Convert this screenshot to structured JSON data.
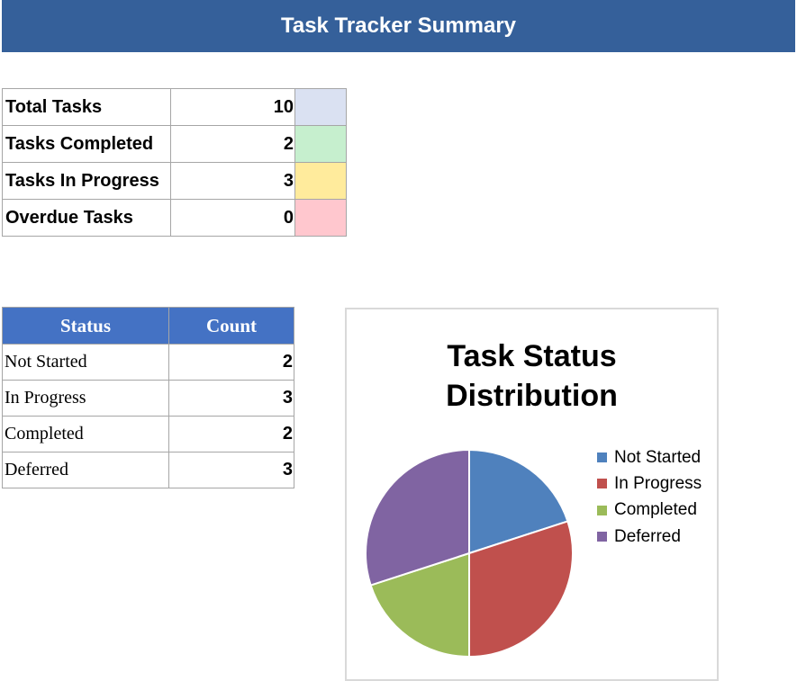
{
  "header": {
    "title": "Task Tracker Summary"
  },
  "summary": {
    "rows": [
      {
        "label": "Total Tasks",
        "value": "10",
        "color": "#dae1f2"
      },
      {
        "label": "Tasks Completed",
        "value": "2",
        "color": "#c6efce"
      },
      {
        "label": "Tasks In Progress",
        "value": "3",
        "color": "#ffeb9c"
      },
      {
        "label": "Overdue Tasks",
        "value": "0",
        "color": "#ffc7ce"
      }
    ]
  },
  "status_table": {
    "headers": [
      "Status",
      "Count"
    ],
    "rows": [
      {
        "status": "Not Started",
        "count": "2"
      },
      {
        "status": "In Progress",
        "count": "3"
      },
      {
        "status": "Completed",
        "count": "2"
      },
      {
        "status": "Deferred",
        "count": "3"
      }
    ]
  },
  "chart_data": {
    "type": "pie",
    "title": "Task Status Distribution",
    "title_lines": [
      "Task Status",
      "Distribution"
    ],
    "categories": [
      "Not Started",
      "In Progress",
      "Completed",
      "Deferred"
    ],
    "values": [
      2,
      3,
      2,
      3
    ],
    "colors": [
      "#4f81bd",
      "#c0504d",
      "#9bbb59",
      "#8064a2"
    ],
    "legend": "right"
  }
}
